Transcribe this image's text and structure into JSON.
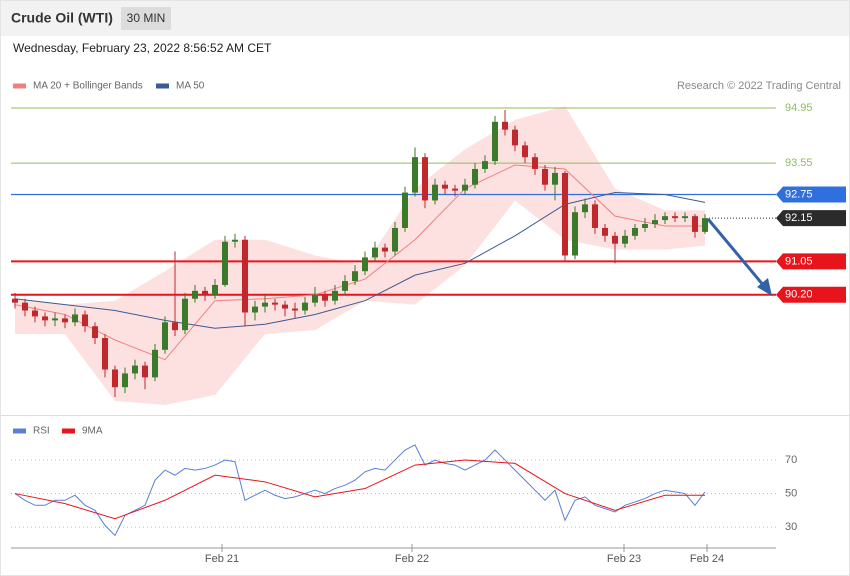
{
  "chart_data": [
    {
      "type": "candlestick",
      "title": "Crude Oil (WTI)",
      "interval": "30 MIN",
      "subtitle": "Wednesday, February 23, 2022 8:56:52 AM CET",
      "credit": "Research © 2022 Trading Central",
      "xlim": [
        -0.4,
        76.1
      ],
      "ylim": [
        87.27,
        96.68
      ],
      "up_color": "#3b7a2a",
      "down_color": "#c0282d",
      "ohlc": [
        [
          90.1,
          90.25,
          89.85,
          90.0
        ],
        [
          90.0,
          90.1,
          89.65,
          89.8
        ],
        [
          89.8,
          89.9,
          89.5,
          89.65
        ],
        [
          89.65,
          89.75,
          89.4,
          89.55
        ],
        [
          89.55,
          89.75,
          89.4,
          89.6
        ],
        [
          89.6,
          89.7,
          89.35,
          89.5
        ],
        [
          89.5,
          89.85,
          89.4,
          89.7
        ],
        [
          89.7,
          89.8,
          89.25,
          89.4
        ],
        [
          89.4,
          89.5,
          88.95,
          89.1
        ],
        [
          89.1,
          89.2,
          88.1,
          88.3
        ],
        [
          88.3,
          88.4,
          87.6,
          87.85
        ],
        [
          87.85,
          88.35,
          87.7,
          88.2
        ],
        [
          88.2,
          88.55,
          88.05,
          88.4
        ],
        [
          88.4,
          88.5,
          87.8,
          88.1
        ],
        [
          88.1,
          88.95,
          88.0,
          88.8
        ],
        [
          88.8,
          89.65,
          88.7,
          89.5
        ],
        [
          89.5,
          91.3,
          89.15,
          89.3
        ],
        [
          89.3,
          90.25,
          89.2,
          90.1
        ],
        [
          90.1,
          90.45,
          90.0,
          90.3
        ],
        [
          90.3,
          90.4,
          90.05,
          90.2
        ],
        [
          90.2,
          90.6,
          90.1,
          90.45
        ],
        [
          90.45,
          91.7,
          90.4,
          91.55
        ],
        [
          91.55,
          91.75,
          91.4,
          91.6
        ],
        [
          91.6,
          91.7,
          89.4,
          89.75
        ],
        [
          89.75,
          90.05,
          89.55,
          89.9
        ],
        [
          89.9,
          90.2,
          89.75,
          90.0
        ],
        [
          90.0,
          90.1,
          89.8,
          89.95
        ],
        [
          89.95,
          90.05,
          89.65,
          89.85
        ],
        [
          89.85,
          90.0,
          89.6,
          89.8
        ],
        [
          89.8,
          90.15,
          89.7,
          90.0
        ],
        [
          90.0,
          90.4,
          89.9,
          90.2
        ],
        [
          90.2,
          90.3,
          89.9,
          90.05
        ],
        [
          90.05,
          90.45,
          89.95,
          90.3
        ],
        [
          90.3,
          90.7,
          90.2,
          90.55
        ],
        [
          90.55,
          90.95,
          90.45,
          90.8
        ],
        [
          90.8,
          91.3,
          90.7,
          91.15
        ],
        [
          91.15,
          91.55,
          91.05,
          91.4
        ],
        [
          91.4,
          91.5,
          91.15,
          91.3
        ],
        [
          91.3,
          92.05,
          91.2,
          91.9
        ],
        [
          91.9,
          92.95,
          91.8,
          92.8
        ],
        [
          92.8,
          93.95,
          92.7,
          93.7
        ],
        [
          93.7,
          93.8,
          92.4,
          92.6
        ],
        [
          92.6,
          93.15,
          92.5,
          93.0
        ],
        [
          93.0,
          93.1,
          92.75,
          92.9
        ],
        [
          92.9,
          93.0,
          92.7,
          92.85
        ],
        [
          92.85,
          93.15,
          92.75,
          93.0
        ],
        [
          93.0,
          93.55,
          92.9,
          93.4
        ],
        [
          93.4,
          93.75,
          93.3,
          93.6
        ],
        [
          93.6,
          94.75,
          93.5,
          94.6
        ],
        [
          94.6,
          94.9,
          94.25,
          94.4
        ],
        [
          94.4,
          94.5,
          93.85,
          94.0
        ],
        [
          94.0,
          94.1,
          93.55,
          93.7
        ],
        [
          93.7,
          93.8,
          93.25,
          93.4
        ],
        [
          93.4,
          93.5,
          92.85,
          93.0
        ],
        [
          93.0,
          93.45,
          92.6,
          93.3
        ],
        [
          93.3,
          93.35,
          91.05,
          91.2
        ],
        [
          91.2,
          92.45,
          91.1,
          92.3
        ],
        [
          92.3,
          92.65,
          92.15,
          92.5
        ],
        [
          92.5,
          92.6,
          91.75,
          91.9
        ],
        [
          91.9,
          92.0,
          91.55,
          91.7
        ],
        [
          91.7,
          91.8,
          91.0,
          91.5
        ],
        [
          91.5,
          91.85,
          91.4,
          91.7
        ],
        [
          91.7,
          92.0,
          91.6,
          91.9
        ],
        [
          91.9,
          92.15,
          91.8,
          92.0
        ],
        [
          92.0,
          92.25,
          91.9,
          92.1
        ],
        [
          92.1,
          92.3,
          92.0,
          92.2
        ],
        [
          92.2,
          92.3,
          92.05,
          92.15
        ],
        [
          92.15,
          92.3,
          92.05,
          92.2
        ],
        [
          92.2,
          92.25,
          91.65,
          91.8
        ],
        [
          91.8,
          92.25,
          91.75,
          92.15
        ]
      ],
      "series": [
        {
          "name": "MA 20 + Bollinger Bands",
          "color": "#f08080",
          "band_color": "#fde0e0",
          "x": [
            0,
            5,
            10,
            15,
            20,
            25,
            30,
            35,
            40,
            45,
            50,
            55,
            60,
            65,
            69
          ],
          "values": [
            89.95,
            89.7,
            89.05,
            88.55,
            90.05,
            90.1,
            90.2,
            90.6,
            91.6,
            92.9,
            93.5,
            93.4,
            92.2,
            91.95,
            91.95
          ],
          "upper": [
            90.1,
            89.95,
            90.05,
            90.8,
            91.6,
            91.6,
            91.2,
            90.95,
            92.9,
            93.9,
            94.65,
            95.0,
            92.9,
            92.35,
            92.35
          ],
          "lower": [
            89.2,
            89.2,
            87.5,
            87.4,
            87.65,
            89.2,
            89.3,
            90.05,
            89.95,
            90.95,
            92.6,
            91.6,
            91.35,
            91.35,
            91.45
          ]
        },
        {
          "name": "MA 50",
          "color": "#3b5b92",
          "x": [
            0,
            5,
            10,
            15,
            20,
            25,
            30,
            35,
            40,
            45,
            50,
            55,
            60,
            65,
            69
          ],
          "values": [
            90.1,
            89.95,
            89.8,
            89.55,
            89.35,
            89.45,
            89.7,
            90.05,
            90.7,
            91.0,
            91.7,
            92.5,
            92.8,
            92.75,
            92.55
          ]
        }
      ],
      "levels": [
        {
          "value": 94.95,
          "color": "#8fbc5a",
          "style": "thin"
        },
        {
          "value": 93.55,
          "color": "#8fbc5a",
          "style": "thin"
        },
        {
          "value": 92.75,
          "color": "#2f6fe0",
          "style": "tag"
        },
        {
          "value": 92.15,
          "color": "#2b2b2b",
          "style": "current"
        },
        {
          "value": 91.05,
          "color": "#e8141c",
          "style": "tag"
        },
        {
          "value": 90.2,
          "label": "90.20",
          "color": "#e8141c",
          "style": "tag"
        }
      ]
    },
    {
      "type": "line",
      "xlim": [
        -0.4,
        76.1
      ],
      "ylim": [
        19.3,
        93.9
      ],
      "yticks": [
        30,
        50,
        70
      ],
      "xticks": [
        {
          "value": 20.7,
          "label": "Feb 21"
        },
        {
          "value": 39.7,
          "label": "Feb 22"
        },
        {
          "value": 60.9,
          "label": "Feb 23"
        },
        {
          "value": 69.2,
          "label": "Feb 24"
        }
      ],
      "series": [
        {
          "name": "RSI",
          "color": "#5b7fd6",
          "x": [
            0,
            1,
            2,
            3,
            4,
            5,
            6,
            7,
            8,
            9,
            10,
            11,
            12,
            13,
            14,
            15,
            16,
            17,
            18,
            19,
            20,
            21,
            22,
            23,
            24,
            25,
            26,
            27,
            28,
            29,
            30,
            31,
            32,
            33,
            34,
            35,
            36,
            37,
            38,
            39,
            40,
            41,
            42,
            43,
            44,
            45,
            46,
            47,
            48,
            49,
            50,
            51,
            52,
            53,
            54,
            55,
            56,
            57,
            58,
            59,
            60,
            61,
            62,
            63,
            64,
            65,
            66,
            67,
            68,
            69
          ],
          "values": [
            50,
            46,
            43,
            43,
            46,
            46,
            49,
            43,
            40,
            31,
            25,
            37,
            40,
            43,
            58,
            64,
            61,
            65,
            64,
            65,
            67,
            70,
            69,
            46,
            49,
            52,
            49,
            47,
            48,
            50,
            52,
            50,
            53,
            55,
            58,
            63,
            65,
            64,
            70,
            76,
            79,
            67,
            70,
            68,
            67,
            64,
            67,
            70,
            76,
            70,
            64,
            58,
            52,
            46,
            52,
            34,
            46,
            48,
            43,
            41,
            39,
            43,
            45,
            47,
            50,
            52,
            51,
            50,
            43,
            51
          ]
        },
        {
          "name": "9MA",
          "color": "#e8141c",
          "x": [
            0,
            5,
            10,
            15,
            20,
            25,
            30,
            35,
            40,
            45,
            50,
            55,
            60,
            65,
            69
          ],
          "values": [
            50,
            44,
            35,
            46,
            61,
            57,
            48,
            53,
            67,
            70,
            68,
            50,
            40,
            49,
            49
          ]
        }
      ]
    }
  ]
}
